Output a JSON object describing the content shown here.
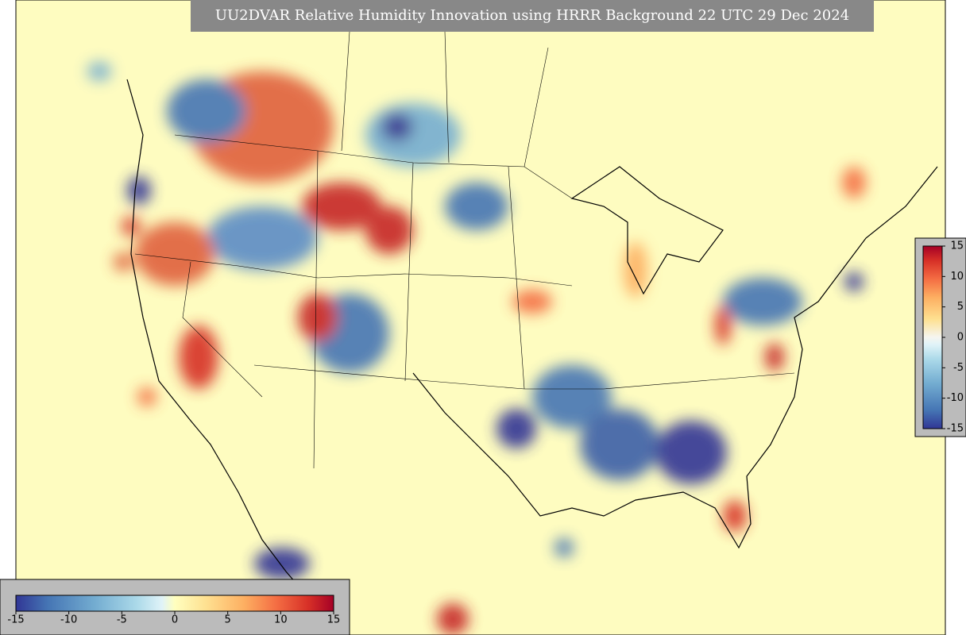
{
  "title": "UU2DVAR Relative Humidity Innovation using HRRR Background 22 UTC 29 Dec 2024",
  "colorbar": {
    "range": [
      -15,
      15
    ],
    "ticks": [
      -15,
      -10,
      -5,
      0,
      5,
      10,
      15
    ]
  },
  "side_colorbar": {
    "range": [
      -15,
      15
    ],
    "ticks": [
      15,
      10,
      5,
      0,
      -5,
      -10,
      -15
    ]
  }
}
